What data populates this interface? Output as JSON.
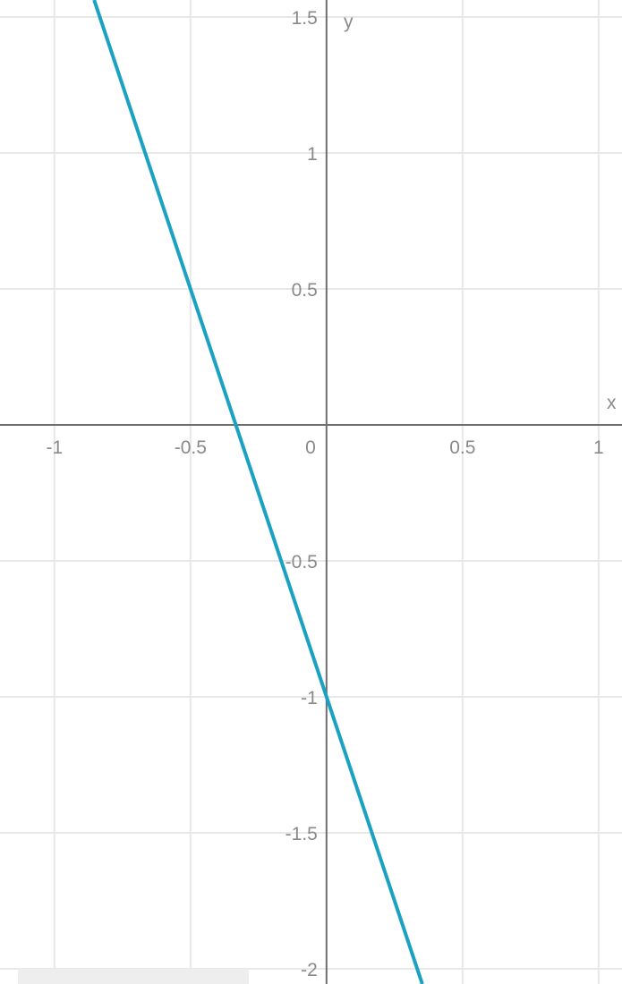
{
  "chart_data": {
    "type": "line",
    "title": "",
    "xlabel": "x",
    "ylabel": "y",
    "xlim": [
      -1.2,
      1.086
    ],
    "ylim": [
      -2.056,
      1.5625
    ],
    "grid": true,
    "x_ticks": [
      -1,
      -0.5,
      0,
      0.5,
      1
    ],
    "x_tick_labels": [
      "-1",
      "-0.5",
      "0",
      "0.5",
      "1"
    ],
    "y_ticks": [
      1.5,
      1,
      0.5,
      -0.5,
      -1,
      -1.5,
      -2
    ],
    "y_tick_labels": [
      "1.5",
      "1",
      "0.5",
      "-0.5",
      "-1",
      "-1.5",
      "-2"
    ],
    "series": [
      {
        "x": [
          -0.854,
          0.352
        ],
        "y": [
          1.5625,
          -2.056
        ],
        "slope": -3,
        "intercept": -1
      }
    ],
    "colors": {
      "line": "#1ba1c2",
      "grid": "#e8e8e8",
      "axis": "#6e6e6e",
      "overlay": "#eeeeee"
    }
  }
}
